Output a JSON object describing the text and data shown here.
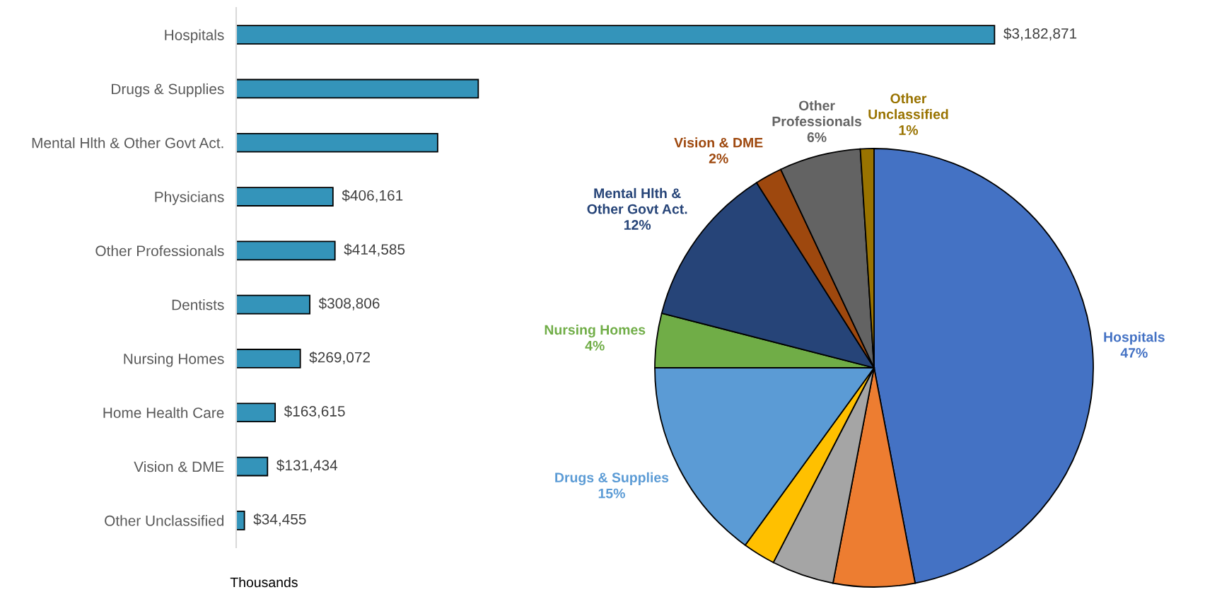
{
  "chart_data": [
    {
      "type": "bar",
      "orientation": "horizontal",
      "xlabel": "Thousands",
      "categories": [
        "Hospitals",
        "Drugs & Supplies",
        "Mental Hlth & Other Govt Act.",
        "Physicians",
        "Other Professionals",
        "Dentists",
        "Nursing Homes",
        "Home Health Care",
        "Vision & DME",
        "Other Unclassified"
      ],
      "values": [
        3182871,
        1016000,
        845480,
        406161,
        414585,
        308806,
        269072,
        163615,
        131434,
        34455
      ],
      "value_labels": [
        "$3,182,871",
        null,
        null,
        "$406,161",
        "$414,585",
        "$308,806",
        "$269,072",
        "$163,615",
        "$131,434",
        "$34,455"
      ],
      "color": "#3494ba",
      "tick_labels": "y",
      "grid": false
    },
    {
      "type": "pie",
      "categories": [
        "Hospitals",
        null,
        null,
        null,
        "Drugs & Supplies",
        "Nursing Homes",
        "Mental Hlth &\nOther Govt Act.",
        "Vision & DME",
        "Other\nProfessionals",
        "Other\nUnclassified"
      ],
      "values": [
        47,
        6,
        4.6,
        2.4,
        15,
        4,
        12,
        2,
        6,
        1
      ],
      "value_labels": [
        "47%",
        null,
        null,
        null,
        "15%",
        "4%",
        "12%",
        "2%",
        "6%",
        "1%"
      ],
      "colors": [
        "#4472c4",
        "#ed7d31",
        "#a5a5a5",
        "#ffc000",
        "#5b9bd5",
        "#70ad47",
        "#264478",
        "#9e480e",
        "#636363",
        "#997300"
      ]
    }
  ]
}
